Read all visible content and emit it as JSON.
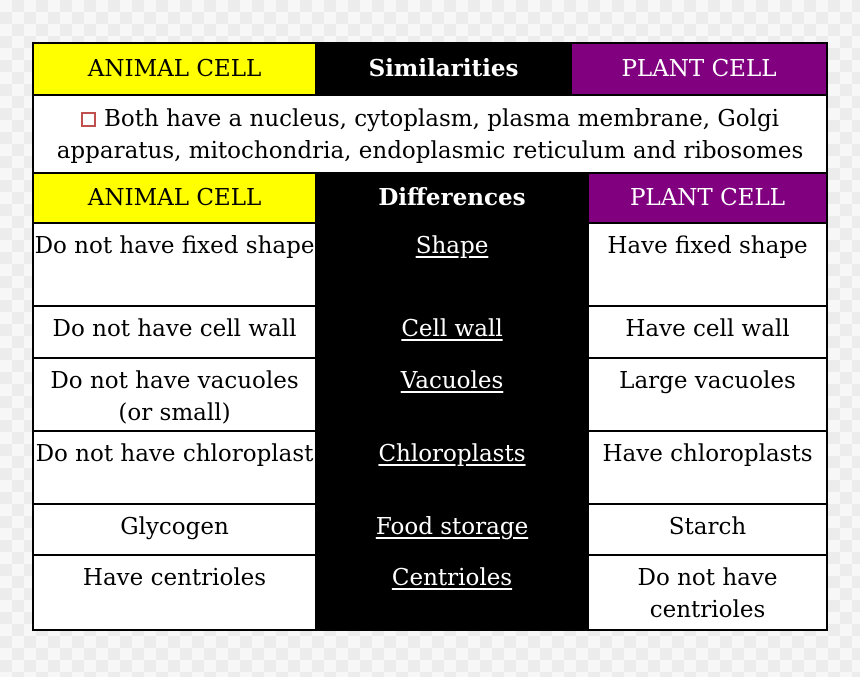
{
  "header1": {
    "animal": "ANIMAL CELL",
    "similarities": "Similarities",
    "plant": "PLANT CELL"
  },
  "similarity_text": "Both have a nucleus, cytoplasm, plasma membrane, Golgi apparatus, mitochondria, endoplasmic reticulum and ribosomes",
  "similarity_bullet_icon": "square-bullet-icon",
  "bullet_color": "#c0504d",
  "header2": {
    "animal": "ANIMAL CELL",
    "differences": "Differences",
    "plant": "PLANT CELL"
  },
  "colors": {
    "animal_header": "#ffff00",
    "plant_header": "#800080",
    "middle_column": "#000000"
  },
  "rows": [
    {
      "animal": "Do not have fixed shape",
      "feature": "Shape",
      "plant": "Have fixed shape"
    },
    {
      "animal": "Do not have cell wall",
      "feature": "Cell wall",
      "plant": "Have cell wall"
    },
    {
      "animal": "Do not have vacuoles (or small)",
      "feature": "Vacuoles",
      "plant": "Large vacuoles"
    },
    {
      "animal": "Do not have chloroplast",
      "feature": "Chloroplasts",
      "plant": "Have chloroplasts"
    },
    {
      "animal": "Glycogen",
      "feature": "Food storage",
      "plant": "Starch"
    },
    {
      "animal": "Have centrioles",
      "feature": "Centrioles",
      "plant": "Do not have centrioles"
    }
  ]
}
